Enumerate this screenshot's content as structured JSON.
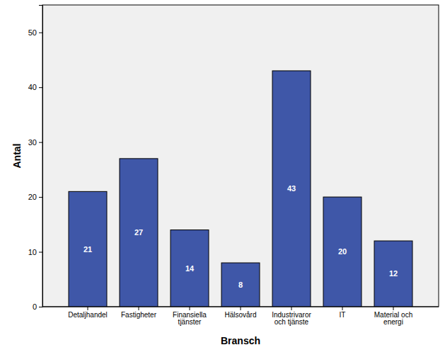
{
  "chart_data": {
    "type": "bar",
    "x_label": "Bransch",
    "y_label": "Antal",
    "categories": [
      "Detaljhandel",
      "Fastigheter",
      "Finansiella tjänster",
      "Hälsovård",
      "Industrivaror och tjänste",
      "IT",
      "Material och energi"
    ],
    "values": [
      21,
      27,
      14,
      8,
      43,
      20,
      12
    ],
    "color": "#3f57a8",
    "ylim": [
      0,
      55
    ],
    "yticks": [
      0,
      10,
      20,
      30,
      40,
      50
    ],
    "grid": false,
    "data_labels": true
  }
}
